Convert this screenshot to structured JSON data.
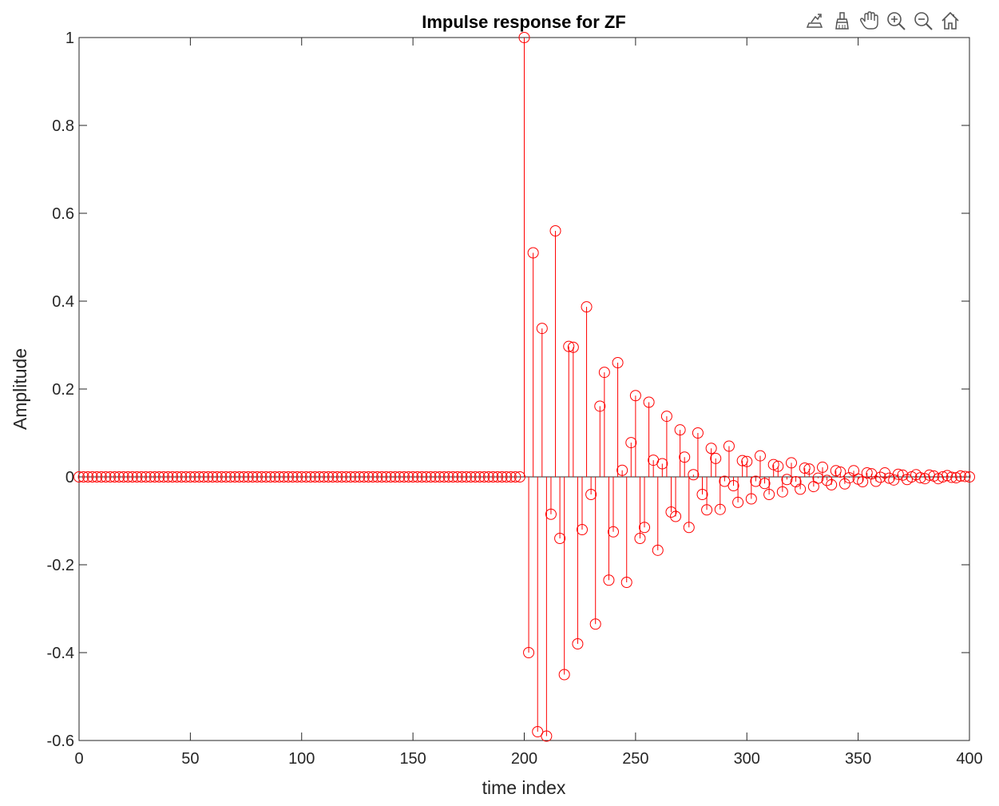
{
  "chart_data": {
    "type": "stem",
    "title": "Impulse response for ZF",
    "xlabel": "time index",
    "ylabel": "Amplitude",
    "xlim": [
      0,
      400
    ],
    "ylim": [
      -0.6,
      1
    ],
    "x_ticks": [
      "0",
      "50",
      "100",
      "150",
      "200",
      "250",
      "300",
      "350",
      "400"
    ],
    "y_ticks": [
      "-0.6",
      "-0.4",
      "-0.2",
      "0",
      "0.2",
      "0.4",
      "0.6",
      "0.8",
      "1"
    ],
    "color": "#ff0000",
    "marker": "circle",
    "grid": false,
    "box": true,
    "x_start": 0,
    "x_step": 2,
    "values": [
      0,
      0,
      0,
      0,
      0,
      0,
      0,
      0,
      0,
      0,
      0,
      0,
      0,
      0,
      0,
      0,
      0,
      0,
      0,
      0,
      0,
      0,
      0,
      0,
      0,
      0,
      0,
      0,
      0,
      0,
      0,
      0,
      0,
      0,
      0,
      0,
      0,
      0,
      0,
      0,
      0,
      0,
      0,
      0,
      0,
      0,
      0,
      0,
      0,
      0,
      0,
      0,
      0,
      0,
      0,
      0,
      0,
      0,
      0,
      0,
      0,
      0,
      0,
      0,
      0,
      0,
      0,
      0,
      0,
      0,
      0,
      0,
      0,
      0,
      0,
      0,
      0,
      0,
      0,
      0,
      0,
      0,
      0,
      0,
      0,
      0,
      0,
      0,
      0,
      0,
      0,
      0,
      0,
      0,
      0,
      0,
      0,
      0,
      0,
      0,
      1.0,
      -0.4,
      0.51,
      -0.58,
      0.338,
      -0.59,
      -0.085,
      0.56,
      -0.14,
      -0.45,
      0.297,
      0.295,
      -0.38,
      -0.12,
      0.387,
      -0.04,
      -0.335,
      0.161,
      0.238,
      -0.235,
      -0.125,
      0.26,
      0.015,
      -0.24,
      0.078,
      0.185,
      -0.14,
      -0.115,
      0.17,
      0.038,
      -0.167,
      0.03,
      0.138,
      -0.08,
      -0.09,
      0.107,
      0.045,
      -0.115,
      0.005,
      0.1,
      -0.04,
      -0.075,
      0.065,
      0.042,
      -0.074,
      -0.01,
      0.07,
      -0.02,
      -0.058,
      0.037,
      0.035,
      -0.05,
      -0.01,
      0.048,
      -0.015,
      -0.04,
      0.028,
      0.024,
      -0.034,
      -0.006,
      0.032,
      -0.011,
      -0.028,
      0.02,
      0.018,
      -0.022,
      -0.003,
      0.022,
      -0.008,
      -0.018,
      0.014,
      0.011,
      -0.016,
      -0.002,
      0.014,
      -0.005,
      -0.011,
      0.009,
      0.007,
      -0.01,
      -0.001,
      0.009,
      -0.003,
      -0.007,
      0.006,
      0.004,
      -0.006,
      0,
      0.005,
      -0.002,
      -0.004,
      0.004,
      0.002,
      -0.004,
      0,
      0.003,
      -0.001,
      -0.002,
      0.002,
      0.001,
      0
    ]
  },
  "toolbar": {
    "tools": [
      {
        "icon": "export-icon"
      },
      {
        "icon": "brush-icon"
      },
      {
        "icon": "pan-hand-icon"
      },
      {
        "icon": "zoom-in-icon"
      },
      {
        "icon": "zoom-out-icon"
      },
      {
        "icon": "home-icon"
      }
    ]
  }
}
